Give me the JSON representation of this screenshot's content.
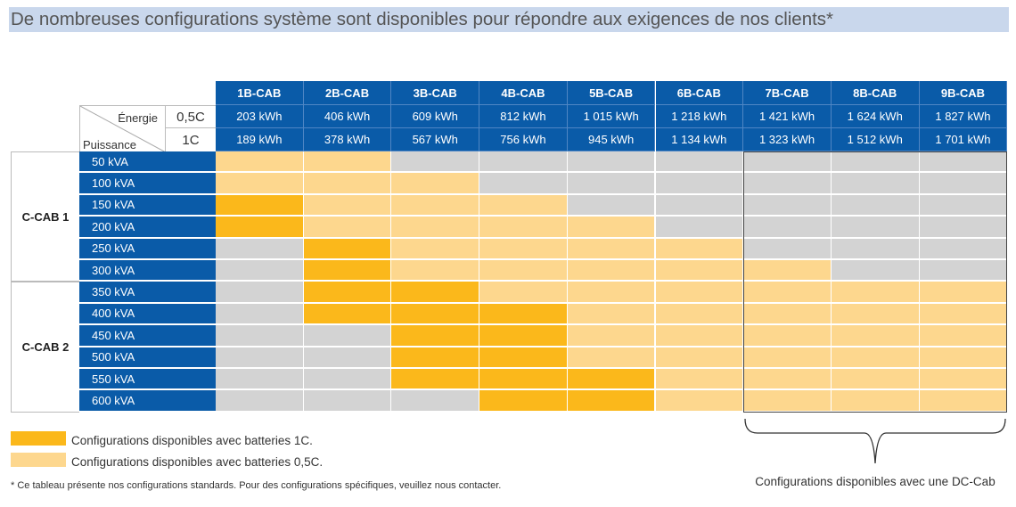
{
  "title": "De nombreuses configurations système sont disponibles pour répondre aux exigences de nos clients*",
  "colors": {
    "header_blue": "#0a5ba8",
    "dark": "#fbb81b",
    "light": "#fdd78e",
    "gray": "#d3d3d3"
  },
  "corner": {
    "energie": "Énergie",
    "puissance": "Puissance",
    "rate_05": "0,5C",
    "rate_1": "1C"
  },
  "columns": [
    {
      "name": "1B-CAB",
      "e05": "203 kWh",
      "e1": "189 kWh"
    },
    {
      "name": "2B-CAB",
      "e05": "406 kWh",
      "e1": "378 kWh"
    },
    {
      "name": "3B-CAB",
      "e05": "609 kWh",
      "e1": "567 kWh"
    },
    {
      "name": "4B-CAB",
      "e05": "812 kWh",
      "e1": "756 kWh"
    },
    {
      "name": "5B-CAB",
      "e05": "1 015 kWh",
      "e1": "945 kWh"
    },
    {
      "name": "6B-CAB",
      "e05": "1 218 kWh",
      "e1": "1 134 kWh"
    },
    {
      "name": "7B-CAB",
      "e05": "1 421 kWh",
      "e1": "1 323 kWh"
    },
    {
      "name": "8B-CAB",
      "e05": "1 624 kWh",
      "e1": "1 512 kWh"
    },
    {
      "name": "9B-CAB",
      "e05": "1 827 kWh",
      "e1": "1 701 kWh"
    }
  ],
  "groups": [
    {
      "label": "C-CAB 1",
      "rows": 6
    },
    {
      "label": "C-CAB 2",
      "rows": 6
    }
  ],
  "rows": [
    {
      "label": "50 kVA",
      "cells": [
        "L",
        "L",
        "G",
        "G",
        "G",
        "G",
        "G",
        "G",
        "G"
      ]
    },
    {
      "label": "100 kVA",
      "cells": [
        "L",
        "L",
        "L",
        "G",
        "G",
        "G",
        "G",
        "G",
        "G"
      ]
    },
    {
      "label": "150 kVA",
      "cells": [
        "D",
        "L",
        "L",
        "L",
        "G",
        "G",
        "G",
        "G",
        "G"
      ]
    },
    {
      "label": "200 kVA",
      "cells": [
        "D",
        "L",
        "L",
        "L",
        "L",
        "G",
        "G",
        "G",
        "G"
      ]
    },
    {
      "label": "250 kVA",
      "cells": [
        "G",
        "D",
        "L",
        "L",
        "L",
        "L",
        "G",
        "G",
        "G"
      ]
    },
    {
      "label": "300 kVA",
      "cells": [
        "G",
        "D",
        "L",
        "L",
        "L",
        "L",
        "L",
        "G",
        "G"
      ]
    },
    {
      "label": "350 kVA",
      "cells": [
        "G",
        "D",
        "D",
        "L",
        "L",
        "L",
        "L",
        "L",
        "L"
      ]
    },
    {
      "label": "400 kVA",
      "cells": [
        "G",
        "D",
        "D",
        "D",
        "L",
        "L",
        "L",
        "L",
        "L"
      ]
    },
    {
      "label": "450 kVA",
      "cells": [
        "G",
        "G",
        "D",
        "D",
        "L",
        "L",
        "L",
        "L",
        "L"
      ]
    },
    {
      "label": "500 kVA",
      "cells": [
        "G",
        "G",
        "D",
        "D",
        "L",
        "L",
        "L",
        "L",
        "L"
      ]
    },
    {
      "label": "550 kVA",
      "cells": [
        "G",
        "G",
        "D",
        "D",
        "D",
        "L",
        "L",
        "L",
        "L"
      ]
    },
    {
      "label": "600 kVA",
      "cells": [
        "G",
        "G",
        "G",
        "D",
        "D",
        "L",
        "L",
        "L",
        "L"
      ]
    }
  ],
  "legend": [
    {
      "code": "D",
      "label": "Configurations disponibles avec batteries 1C."
    },
    {
      "code": "L",
      "label": "Configurations disponibles avec batteries 0,5C."
    }
  ],
  "footnote": "* Ce tableau présente nos configurations standards. Pour des configurations spécifiques, veuillez nous contacter.",
  "dc_cab_note": "Configurations disponibles avec une DC-Cab"
}
